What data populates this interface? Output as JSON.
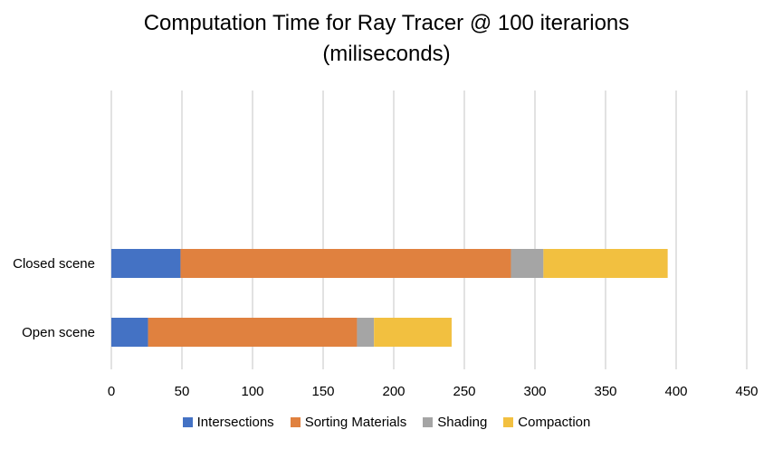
{
  "chart_data": {
    "type": "bar",
    "orientation": "horizontal",
    "stacked": true,
    "title": "Computation Time for Ray Tracer @ 100 iterarions",
    "subtitle": "(miliseconds)",
    "categories": [
      "Closed scene",
      "Open scene"
    ],
    "series": [
      {
        "name": "Intersections",
        "color": "#4472C4",
        "values": [
          49,
          26
        ]
      },
      {
        "name": "Sorting Materials",
        "color": "#E0813F",
        "values": [
          234,
          148
        ]
      },
      {
        "name": "Shading",
        "color": "#A5A5A5",
        "values": [
          23,
          12
        ]
      },
      {
        "name": "Compaction",
        "color": "#F2C040",
        "values": [
          88,
          55
        ]
      }
    ],
    "xlim": [
      0,
      450
    ],
    "xticks": [
      "0",
      "50",
      "100",
      "150",
      "200",
      "250",
      "300",
      "350",
      "400",
      "450"
    ],
    "xlabel": "",
    "ylabel": "",
    "grid": true,
    "gridline_color": "#D9D9D9",
    "legend_position": "bottom"
  }
}
